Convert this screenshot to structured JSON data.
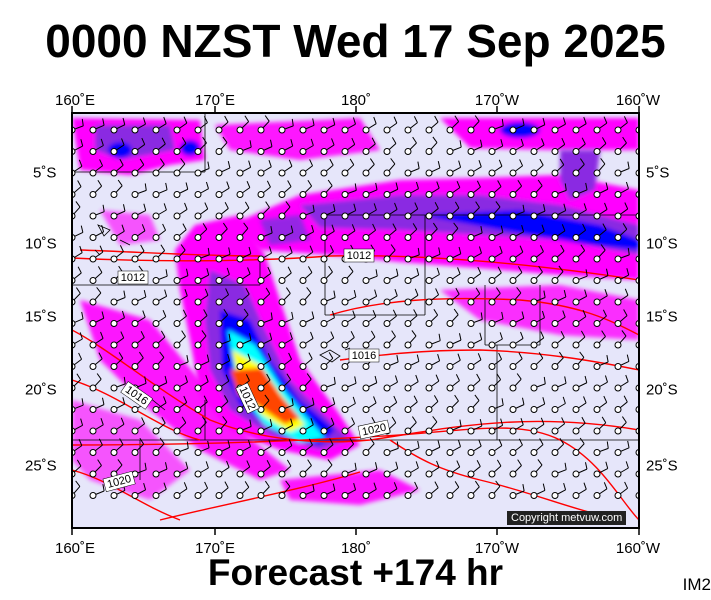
{
  "title": "0000 NZST Wed 17 Sep 2025",
  "footer": "Forecast +174 hr",
  "model_label": "IM2",
  "copyright": "Copyright metvuw.com",
  "lon_labels": [
    "160˚E",
    "170˚E",
    "180˚",
    "170˚W",
    "160˚W"
  ],
  "lat_labels_left": [
    "5˚S",
    "10˚S",
    "15˚S",
    "20˚S",
    "25˚S"
  ],
  "lat_labels_right": [
    "5˚S",
    "10˚S",
    "15˚S",
    "20˚S",
    "25˚S"
  ],
  "isobars": [
    {
      "label": "1012",
      "color": "#ff0000"
    },
    {
      "label": "1016",
      "color": "#ff0000"
    },
    {
      "label": "1020",
      "color": "#ff0000"
    }
  ],
  "colors": {
    "map_background": "#e6e6fa",
    "precip_light": "#ff00ff",
    "precip_mod": "#8a2be2",
    "precip_heavy": "#0000ff",
    "precip_cyan": "#00ffff",
    "precip_yellow": "#ffff00",
    "precip_red": "#ff0000",
    "isobar": "#ff0000"
  },
  "map": {
    "lon_range": [
      160,
      200
    ],
    "lat_range": [
      -29,
      -2
    ],
    "grid_step_deg": 5
  }
}
